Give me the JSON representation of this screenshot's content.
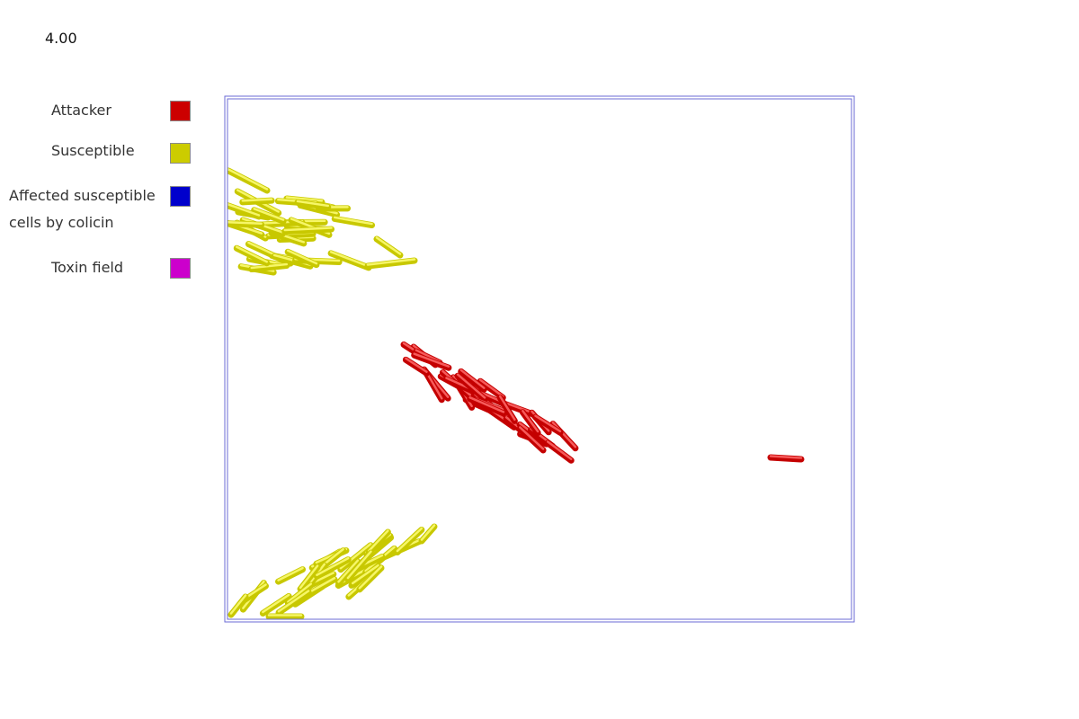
{
  "time_label": "4.00",
  "legend": {
    "items": [
      {
        "label": "Attacker",
        "color": "#cc0000"
      },
      {
        "label": "Susceptible",
        "color": "#cccc00"
      },
      {
        "label": "Affected susceptible cells by colicin",
        "color": "#0000cc"
      },
      {
        "label": "Toxin field",
        "color": "#cc00cc"
      }
    ]
  }
}
